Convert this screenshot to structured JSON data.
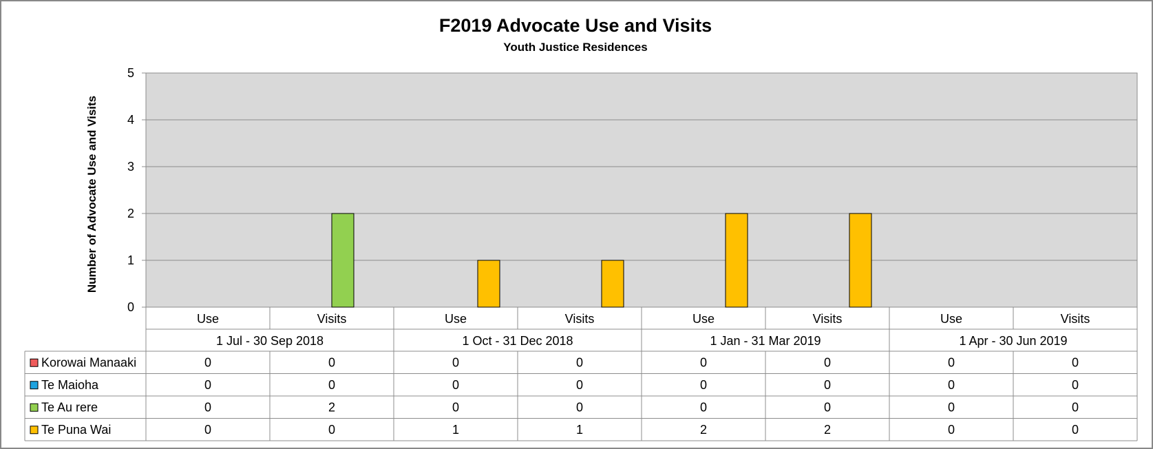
{
  "chart_data": {
    "type": "bar",
    "title": "F2019 Advocate Use and Visits",
    "subtitle": "Youth Justice Residences",
    "ylabel": "Number of Advocate Use and Visits",
    "ylim": [
      0,
      5
    ],
    "yticks": [
      "0",
      "1",
      "2",
      "3",
      "4",
      "5"
    ],
    "grid": true,
    "legend": "data table, left",
    "groups": [
      "1 Jul - 30 Sep 2018",
      "1 Oct - 31 Dec 2018",
      "1 Jan - 31 Mar 2019",
      "1 Apr - 30 Jun 2019"
    ],
    "categories": [
      "Use",
      "Visits",
      "Use",
      "Visits",
      "Use",
      "Visits",
      "Use",
      "Visits"
    ],
    "series": [
      {
        "name": "Korowai Manaaki",
        "color": "#ef5b5b",
        "values": [
          0,
          0,
          0,
          0,
          0,
          0,
          0,
          0
        ]
      },
      {
        "name": "Te Maioha",
        "color": "#1ea3e0",
        "values": [
          0,
          0,
          0,
          0,
          0,
          0,
          0,
          0
        ]
      },
      {
        "name": "Te Au rere",
        "color": "#92d050",
        "values": [
          0,
          2,
          0,
          0,
          0,
          0,
          0,
          0
        ]
      },
      {
        "name": "Te Puna Wai",
        "color": "#ffc000",
        "values": [
          0,
          0,
          1,
          1,
          2,
          2,
          0,
          0
        ]
      }
    ]
  }
}
